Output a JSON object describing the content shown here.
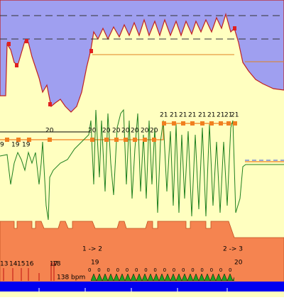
{
  "row_19": [
    "9",
    "19",
    "19"
  ],
  "row_20": [
    "20",
    "20",
    "20",
    "20",
    "20",
    "20",
    "20",
    "20"
  ],
  "row_21": [
    "21",
    "21",
    "21",
    "21",
    "21",
    "21",
    "21",
    "21",
    "21"
  ],
  "lap_numbers": [
    "13",
    "14",
    "15",
    "16",
    "17",
    "18",
    "19",
    "20"
  ],
  "transitions": [
    "1 -> 2",
    "2 -> 3"
  ],
  "heart_rate": "138 bpm",
  "markers": [
    "0",
    "0",
    "0",
    "0",
    "0",
    "0",
    "0",
    "0",
    "0",
    "0",
    "0",
    "0",
    "0",
    "0",
    "0",
    "0"
  ]
}
